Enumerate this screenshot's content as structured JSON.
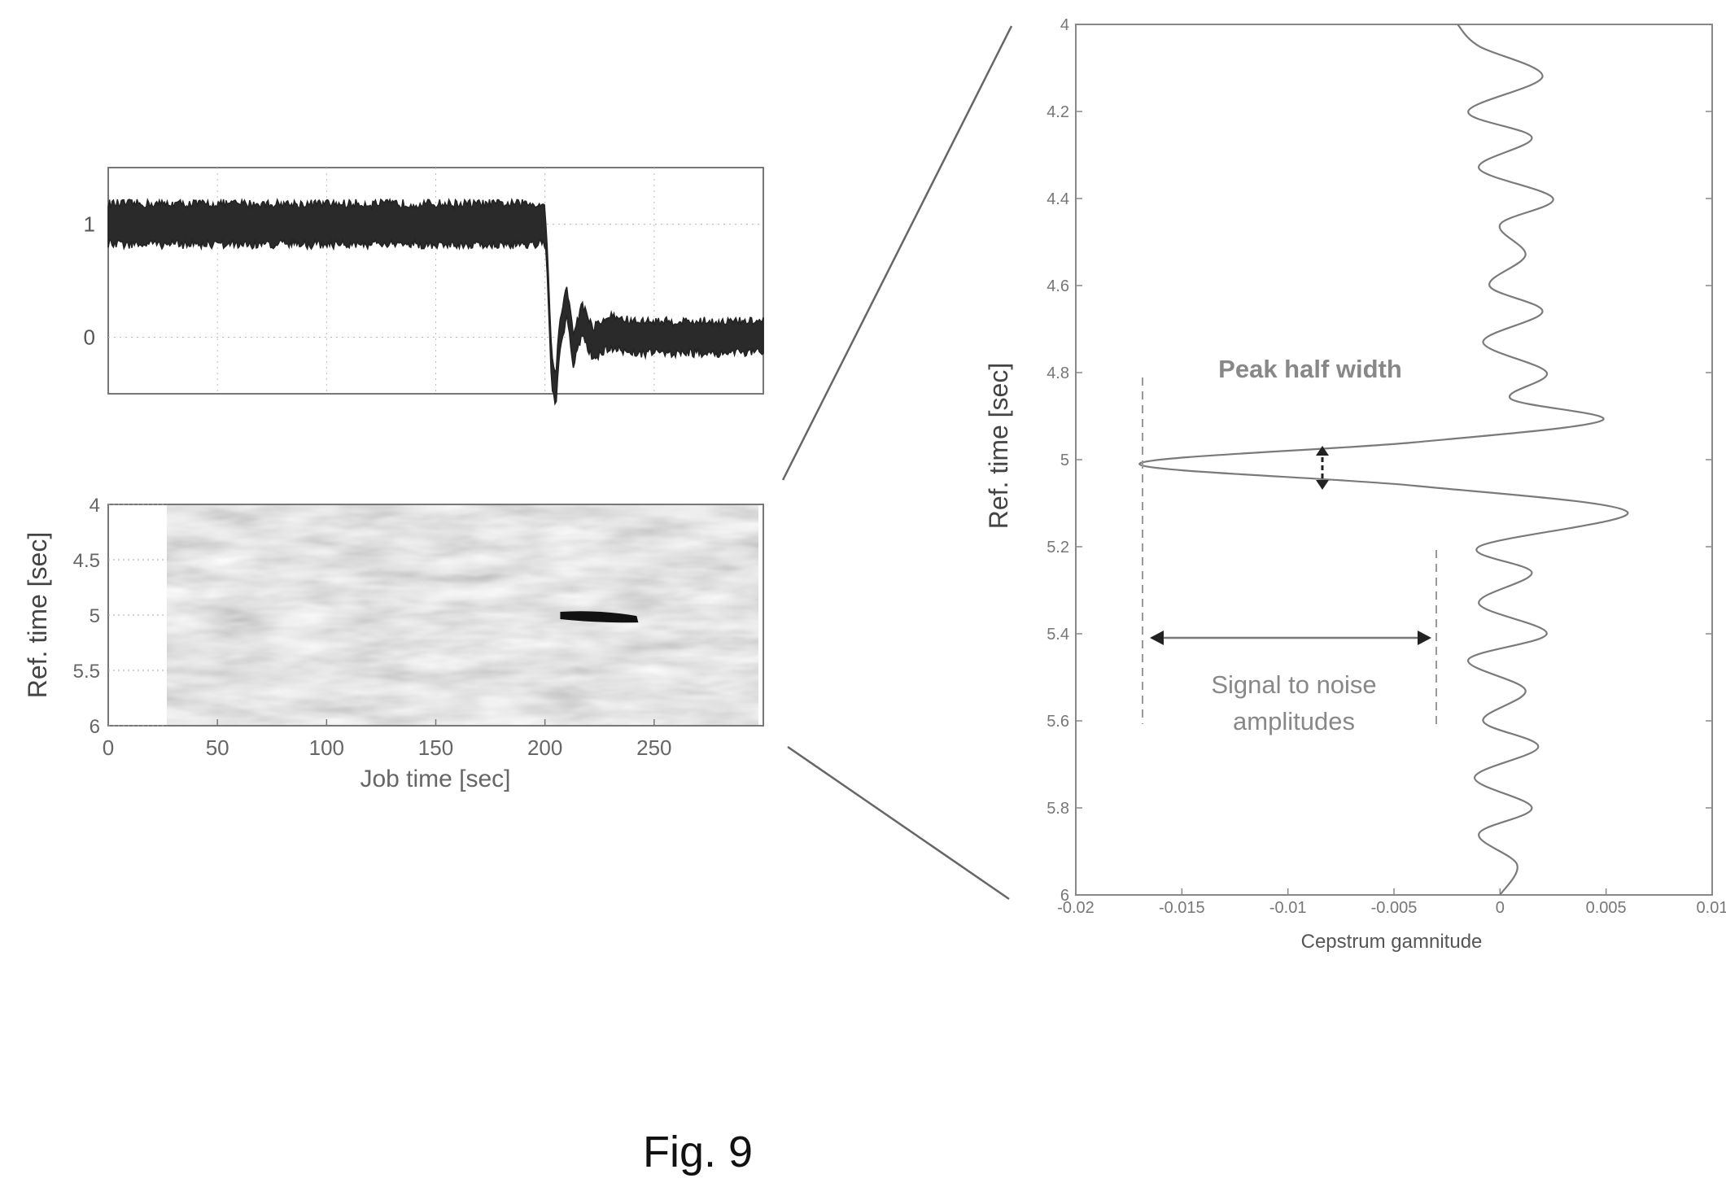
{
  "figure_label": "Fig. 9",
  "chart_data": [
    {
      "type": "line",
      "panel": "top-left",
      "title": "",
      "xlabel": "",
      "ylabel": "",
      "xlim": [
        0,
        300
      ],
      "ylim": [
        -0.5,
        1.5
      ],
      "yticks": [
        "1",
        "0"
      ],
      "grid": "dotted",
      "series": [
        {
          "x": [
            0,
            200,
            201,
            203,
            205,
            207,
            210,
            213,
            217,
            222,
            230,
            240,
            260,
            300
          ],
          "y": [
            1,
            1,
            0.7,
            -0.3,
            -0.45,
            0.05,
            0.3,
            -0.1,
            0.15,
            -0.05,
            0.05,
            0,
            0,
            0
          ],
          "noise": 0.1
        }
      ]
    },
    {
      "type": "heatmap",
      "panel": "bottom-left",
      "xlabel": "Job time [sec]",
      "ylabel": "Ref. time [sec]",
      "xlim": [
        0,
        300
      ],
      "ylim": [
        6,
        4
      ],
      "xticks": [
        "0",
        "50",
        "100",
        "150",
        "200",
        "250"
      ],
      "yticks": [
        "4",
        "4.5",
        "5",
        "5.5",
        "6"
      ],
      "data_start_x": 27,
      "feature": {
        "x_start": 207,
        "x_end": 242,
        "y_start": 5.0,
        "y_end": 5.03,
        "label": ""
      }
    },
    {
      "type": "line",
      "panel": "right",
      "xlabel": "Cepstrum gamnitude",
      "ylabel": "Ref. time [sec]",
      "xlim": [
        -0.02,
        0.01
      ],
      "ylim": [
        6,
        4
      ],
      "xticks": [
        "-0.02",
        "-0.015",
        "-0.01",
        "-0.005",
        "0",
        "0.005",
        "0.01"
      ],
      "yticks": [
        "4",
        "4.2",
        "4.4",
        "4.6",
        "4.8",
        "5",
        "5.2",
        "5.4",
        "5.6",
        "5.8",
        "6"
      ],
      "series": [
        {
          "y": [
            4.0,
            4.05,
            4.12,
            4.2,
            4.26,
            4.33,
            4.4,
            4.46,
            4.53,
            4.6,
            4.66,
            4.73,
            4.8,
            4.86,
            4.91,
            4.96,
            5.01,
            5.06,
            5.12,
            5.2,
            5.26,
            5.33,
            5.4,
            5.46,
            5.53,
            5.6,
            5.66,
            5.73,
            5.8,
            5.86,
            5.93,
            6.0
          ],
          "x": [
            -0.002,
            -0.001,
            0.002,
            -0.0015,
            0.0015,
            -0.001,
            0.0025,
            0.0,
            0.0012,
            -0.0005,
            0.002,
            -0.0008,
            0.0022,
            0.0005,
            0.0048,
            -0.004,
            -0.017,
            -0.004,
            0.006,
            -0.001,
            0.0015,
            -0.001,
            0.0022,
            -0.0015,
            0.0012,
            -0.0008,
            0.0018,
            -0.0012,
            0.0015,
            -0.001,
            0.0008,
            0.0
          ]
        }
      ],
      "annotations": [
        {
          "text": "Peak half width",
          "kind": "vertical-arrow"
        },
        {
          "text": "Signal to noise",
          "text2": "amplitudes",
          "kind": "horizontal-arrow"
        }
      ]
    }
  ]
}
